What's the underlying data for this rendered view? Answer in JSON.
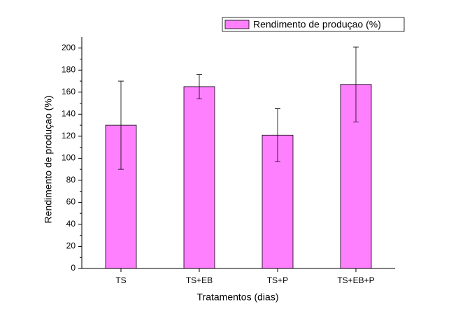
{
  "chart_data": {
    "type": "bar",
    "x_label": "Tratamentos (dias)",
    "y_label": "Rendimento de produçao (%)",
    "categories": [
      "TS",
      "TS+EB",
      "TS+P",
      "TS+EB+P"
    ],
    "series": [
      {
        "name": "Rendimento de produçao (%)",
        "color": "#ff80ff",
        "values": [
          130,
          165,
          121,
          167
        ],
        "errors": [
          40,
          11,
          24,
          34
        ]
      }
    ],
    "ylim": [
      0,
      210
    ],
    "yticks": [
      0,
      20,
      40,
      60,
      80,
      100,
      120,
      140,
      160,
      180,
      200
    ],
    "legend": "top-right"
  }
}
